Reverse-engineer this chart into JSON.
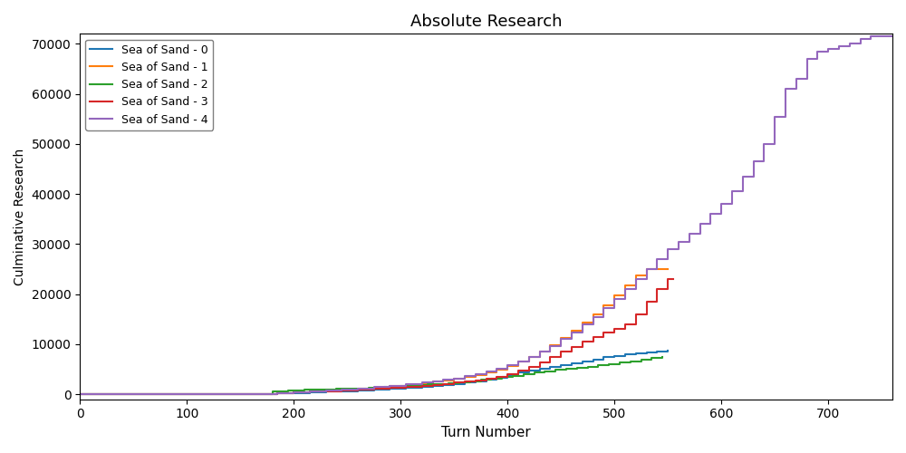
{
  "title": "Absolute Research",
  "xlabel": "Turn Number",
  "ylabel": "Culminative Research",
  "series": [
    {
      "label": "Sea of Sand - 0",
      "color": "#1f77b4",
      "x": [
        0,
        170,
        185,
        200,
        215,
        230,
        245,
        260,
        275,
        290,
        305,
        320,
        330,
        340,
        350,
        360,
        370,
        380,
        390,
        400,
        410,
        420,
        430,
        440,
        450,
        460,
        470,
        480,
        490,
        500,
        510,
        520,
        530,
        540,
        550
      ],
      "y": [
        0,
        0,
        200,
        300,
        450,
        550,
        650,
        800,
        950,
        1100,
        1300,
        1550,
        1700,
        1900,
        2100,
        2350,
        2600,
        2900,
        3300,
        3800,
        4300,
        4700,
        5100,
        5500,
        5900,
        6200,
        6600,
        7000,
        7400,
        7700,
        8000,
        8200,
        8400,
        8600,
        8800
      ]
    },
    {
      "label": "Sea of Sand - 1",
      "color": "#ff7f0e",
      "x": [
        0,
        170,
        185,
        200,
        215,
        230,
        245,
        260,
        275,
        290,
        305,
        320,
        330,
        340,
        350,
        360,
        370,
        380,
        390,
        400,
        410,
        420,
        430,
        440,
        450,
        460,
        470,
        480,
        490,
        500,
        510,
        520,
        530,
        540,
        550
      ],
      "y": [
        0,
        0,
        200,
        400,
        600,
        750,
        950,
        1100,
        1350,
        1600,
        1900,
        2200,
        2500,
        2750,
        3100,
        3450,
        3900,
        4400,
        5000,
        5700,
        6500,
        7400,
        8500,
        9800,
        11200,
        12700,
        14300,
        16000,
        17800,
        19700,
        21700,
        23700,
        25000,
        25000,
        25000
      ]
    },
    {
      "label": "Sea of Sand - 2",
      "color": "#2ca02c",
      "x": [
        0,
        165,
        180,
        195,
        210,
        225,
        240,
        255,
        270,
        285,
        300,
        315,
        325,
        335,
        345,
        355,
        365,
        375,
        385,
        395,
        405,
        415,
        425,
        435,
        445,
        455,
        465,
        475,
        485,
        495,
        505,
        515,
        525,
        535,
        545
      ],
      "y": [
        0,
        0,
        500,
        700,
        900,
        1000,
        1100,
        1200,
        1350,
        1500,
        1650,
        1800,
        1950,
        2100,
        2250,
        2450,
        2650,
        2850,
        3100,
        3400,
        3700,
        4050,
        4350,
        4600,
        4850,
        5050,
        5300,
        5550,
        5800,
        6050,
        6300,
        6600,
        6900,
        7200,
        7500
      ]
    },
    {
      "label": "Sea of Sand - 3",
      "color": "#d62728",
      "x": [
        0,
        170,
        185,
        200,
        215,
        230,
        245,
        260,
        275,
        290,
        305,
        320,
        330,
        340,
        350,
        360,
        370,
        380,
        390,
        400,
        410,
        420,
        430,
        440,
        450,
        460,
        470,
        480,
        490,
        500,
        510,
        520,
        530,
        540,
        550,
        555
      ],
      "y": [
        0,
        0,
        200,
        350,
        500,
        650,
        800,
        950,
        1100,
        1300,
        1500,
        1700,
        1900,
        2100,
        2300,
        2500,
        2800,
        3100,
        3500,
        4000,
        4700,
        5500,
        6400,
        7400,
        8500,
        9500,
        10600,
        11500,
        12300,
        13000,
        14000,
        16000,
        18500,
        21000,
        23000,
        23000
      ]
    },
    {
      "label": "Sea of Sand - 4",
      "color": "#9467bd",
      "x": [
        0,
        170,
        185,
        200,
        215,
        230,
        245,
        260,
        275,
        290,
        305,
        320,
        330,
        340,
        350,
        360,
        370,
        380,
        390,
        400,
        410,
        420,
        430,
        440,
        450,
        460,
        470,
        480,
        490,
        500,
        510,
        520,
        530,
        540,
        550,
        560,
        570,
        580,
        590,
        600,
        610,
        620,
        630,
        640,
        650,
        660,
        670,
        680,
        690,
        700,
        710,
        720,
        730,
        740,
        750,
        760
      ],
      "y": [
        0,
        0,
        200,
        400,
        600,
        800,
        1000,
        1200,
        1450,
        1700,
        2000,
        2300,
        2600,
        2900,
        3200,
        3600,
        4000,
        4500,
        5100,
        5800,
        6600,
        7500,
        8500,
        9700,
        11000,
        12400,
        13900,
        15500,
        17200,
        19000,
        21000,
        23000,
        25000,
        27000,
        29000,
        30500,
        32000,
        34000,
        36000,
        38000,
        40500,
        43500,
        46500,
        50000,
        55500,
        61000,
        63000,
        67000,
        68500,
        69000,
        69500,
        70000,
        71000,
        71500,
        71500,
        71500
      ]
    }
  ],
  "xlim": [
    0,
    760
  ],
  "ylim": [
    -1000,
    72000
  ],
  "figsize": [
    10,
    5
  ],
  "dpi": 100,
  "yticks": [
    0,
    10000,
    20000,
    30000,
    40000,
    50000,
    60000,
    70000
  ],
  "xticks": [
    0,
    100,
    200,
    300,
    400,
    500,
    600,
    700
  ]
}
